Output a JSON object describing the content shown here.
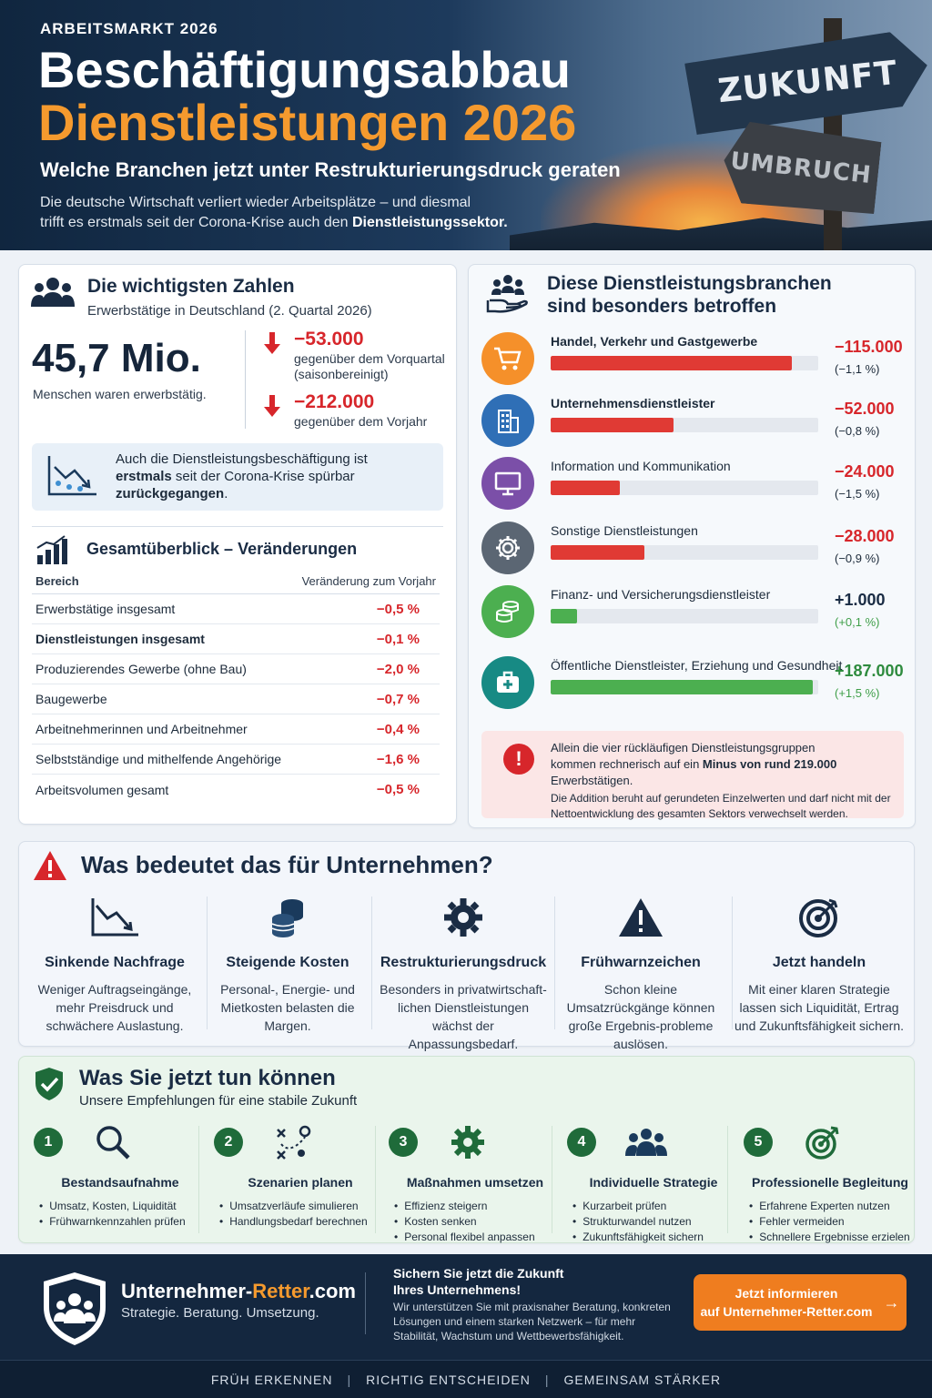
{
  "hero": {
    "eyebrow": "ARBEITSMARKT 2026",
    "title_line1": "Beschäftigungsabbau",
    "title_line2": "Dienstleistungen 2026",
    "subtitle": "Welche Branchen jetzt unter Restrukturierungsdruck geraten",
    "intro_line1": "Die deutsche Wirtschaft verliert wieder Arbeitsplätze – und diesmal",
    "intro_line2_pre": "trifft es erstmals seit der Corona-Krise auch den ",
    "intro_line2_bold": "Dienstleistungssektor.",
    "sign_top": "ZUKUNFT",
    "sign_bottom": "UMBRUCH"
  },
  "zahlen": {
    "title": "Die wichtigsten Zahlen",
    "subtitle": "Erwerbstätige in Deutschland (2. Quartal 2026)",
    "big_value": "45,7 Mio.",
    "big_caption": "Menschen waren erwerbstätig.",
    "delta1_value": "−53.000",
    "delta1_caption_line1": "gegenüber dem Vorquartal",
    "delta1_caption_line2": "(saisonbereinigt)",
    "delta2_value": "−212.000",
    "delta2_caption": "gegenüber dem Vorjahr",
    "note_pre": "Auch die Dienstleistungsbeschäftigung ist ",
    "note_bold1": "erstmals",
    "note_mid": " seit der Corona-Krise spürbar ",
    "note_bold2": "zurückgegangen",
    "note_end": "."
  },
  "gesamt": {
    "title": "Gesamtüberblick – Veränderungen",
    "col_area": "Bereich",
    "col_change": "Veränderung zum Vorjahr",
    "rows": [
      {
        "label": "Erwerbstätige insgesamt",
        "value": "−0,5 %"
      },
      {
        "label": "Dienstleistungen insgesamt",
        "value": "−0,1 %"
      },
      {
        "label": "Produzierendes Gewerbe (ohne Bau)",
        "value": "−2,0 %"
      },
      {
        "label": "Baugewerbe",
        "value": "−0,7 %"
      },
      {
        "label": "Arbeitnehmerinnen und Arbeitnehmer",
        "value": "−0,4 %"
      },
      {
        "label": "Selbstständige und mithelfende Angehörige",
        "value": "−1,6 %"
      },
      {
        "label": "Arbeitsvolumen gesamt",
        "value": "−0,5 %"
      }
    ]
  },
  "branchen": {
    "title_line1": "Diese Dienstleistungsbranchen",
    "title_line2": "sind besonders betroffen",
    "items": [
      {
        "label": "Handel, Verkehr und Gastgewerbe",
        "value": "−115.000",
        "pct": "(−1,1 %)",
        "fill": 0.9,
        "icon": "cart-icon",
        "color": "#f5902a",
        "positive": false
      },
      {
        "label": "Unternehmensdienstleister",
        "value": "−52.000",
        "pct": "(−0,8 %)",
        "fill": 0.46,
        "icon": "building-icon",
        "color": "#2f6fb6",
        "positive": false
      },
      {
        "label": "Information und Kommunikation",
        "value": "−24.000",
        "pct": "(−1,5 %)",
        "fill": 0.26,
        "icon": "monitor-icon",
        "color": "#7b4fa8",
        "positive": false
      },
      {
        "label": "Sonstige Dienstleistungen",
        "value": "−28.000",
        "pct": "(−0,9 %)",
        "fill": 0.35,
        "icon": "gear-icon",
        "color": "#5b6673",
        "positive": false
      },
      {
        "label": "Finanz- und Versicherungsdienstleister",
        "value": "+1.000",
        "pct": "(+0,1 %)",
        "fill": 0.1,
        "icon": "coins-icon",
        "color": "#4caf50",
        "positive": true
      },
      {
        "label": "Öffentliche Dienstleister, Erziehung und Gesundheit",
        "value": "+187.000",
        "pct": "(+1,5 %)",
        "fill": 0.98,
        "icon": "medical-case-icon",
        "color": "#178a84",
        "positive": true
      }
    ],
    "alert_line1": "Allein die vier rückläufigen Dienstleistungsgruppen",
    "alert_line2_pre": "kommen rechnerisch auf ein ",
    "alert_line2_bold": "Minus von rund 219.000",
    "alert_line2_post": " Erwerbstätigen.",
    "alert_small": "Die Addition beruht auf gerundeten Einzelwerten und darf nicht mit der Nettoentwicklung des gesamten Sektors verwechselt werden."
  },
  "bedeutung": {
    "title": "Was bedeutet das für Unternehmen?",
    "cols": [
      {
        "heading": "Sinkende Nachfrage",
        "text": "Weniger Auftragseingänge, mehr Preisdruck und schwächere Auslastung."
      },
      {
        "heading": "Steigende Kosten",
        "text": "Personal-, Energie- und Mietkosten belasten die Margen."
      },
      {
        "heading": "Restrukturierungsdruck",
        "text": "Besonders in privatwirtschaft-lichen Dienstleistungen wächst der Anpassungsbedarf."
      },
      {
        "heading": "Frühwarnzeichen",
        "text": "Schon kleine Umsatzrückgänge können große Ergebnis-probleme auslösen."
      },
      {
        "heading": "Jetzt handeln",
        "text": "Mit einer klaren Strategie lassen sich Liquidität, Ertrag und Zukunftsfähigkeit sichern."
      }
    ]
  },
  "tun": {
    "title": "Was Sie jetzt tun können",
    "subtitle": "Unsere Empfehlungen für eine stabile Zukunft",
    "steps": [
      {
        "num": "1",
        "heading": "Bestandsaufnahme",
        "items": [
          "Umsatz, Kosten, Liquidität",
          "Frühwarnkennzahlen prüfen"
        ]
      },
      {
        "num": "2",
        "heading": "Szenarien planen",
        "items": [
          "Umsatzverläufe simulieren",
          "Handlungsbedarf berechnen"
        ]
      },
      {
        "num": "3",
        "heading": "Maßnahmen umsetzen",
        "items": [
          "Effizienz steigern",
          "Kosten senken",
          "Personal flexibel anpassen"
        ]
      },
      {
        "num": "4",
        "heading": "Individuelle Strategie",
        "items": [
          "Kurzarbeit prüfen",
          "Strukturwandel nutzen",
          "Zukunftsfähigkeit sichern"
        ]
      },
      {
        "num": "5",
        "heading": "Professionelle Begleitung",
        "items": [
          "Erfahrene Experten nutzen",
          "Fehler vermeiden",
          "Schnellere Ergebnisse erzielen"
        ]
      }
    ]
  },
  "footer": {
    "brand_main": "Unternehmer-",
    "brand_accent": "Retter",
    "brand_tld": ".com",
    "slogan": "Strategie. Beratung. Umsetzung.",
    "head_line1": "Sichern Sie jetzt die Zukunft",
    "head_line2": "Ihres Unternehmens!",
    "text": "Wir unterstützen Sie mit praxisnaher Beratung, konkreten Lösungen und einem starken Netzwerk – für mehr Stabilität, Wachstum und Wettbewerbsfähigkeit.",
    "cta_line1": "Jetzt informieren",
    "cta_line2": "auf Unternehmer-Retter.com",
    "cta_arrow": "→",
    "strip": [
      "FRÜH ERKENNEN",
      "RICHTIG ENTSCHEIDEN",
      "GEMEINSAM STÄRKER"
    ],
    "separator": "|"
  },
  "colors": {
    "navy": "#14273f",
    "orange": "#f59a2e",
    "red": "#d7262b",
    "green": "#3f9f49",
    "dark_green": "#1f6b3a"
  }
}
